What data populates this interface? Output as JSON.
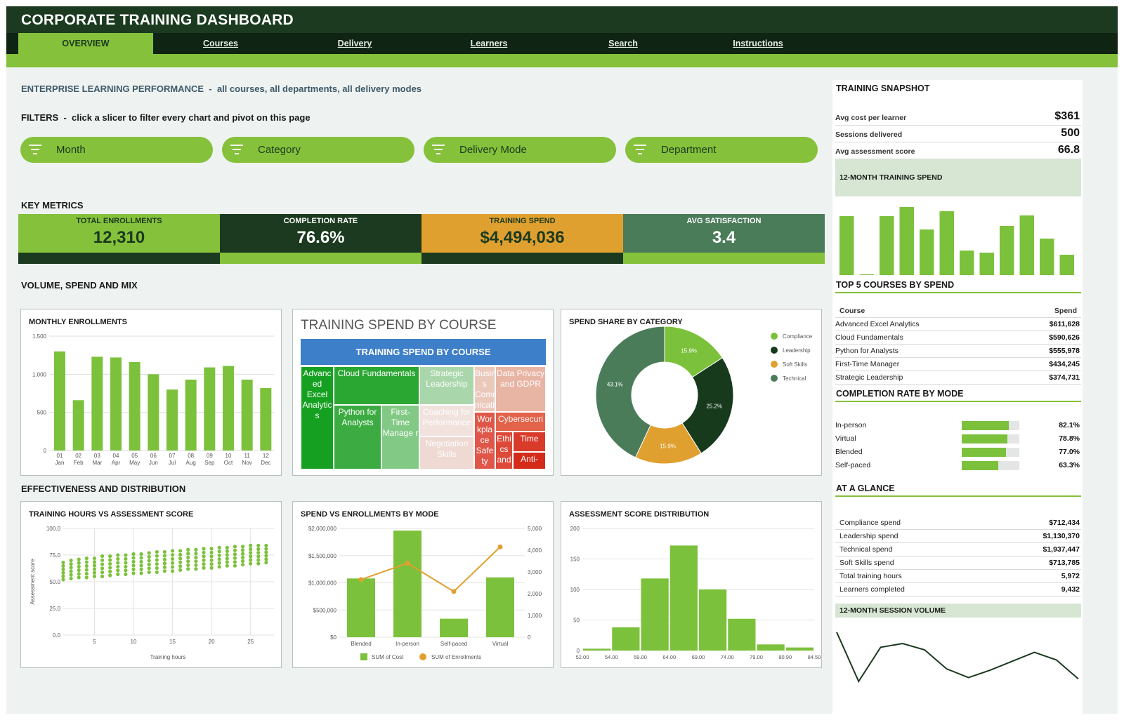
{
  "title": "CORPORATE TRAINING DASHBOARD",
  "nav": {
    "tabs": [
      {
        "label": "OVERVIEW",
        "active": true
      },
      {
        "label": "Courses",
        "active": false
      },
      {
        "label": "Delivery",
        "active": false
      },
      {
        "label": "Learners",
        "active": false
      },
      {
        "label": "Search",
        "active": false
      },
      {
        "label": "Instructions",
        "active": false
      }
    ]
  },
  "subtitle": {
    "main": "ENTERPRISE LEARNING PERFORMANCE",
    "scope": "all courses, all departments, all delivery modes"
  },
  "filters": {
    "heading": "FILTERS",
    "hint": "click a slicer to filter every chart and pivot on this page",
    "slicers": [
      "Month",
      "Category",
      "Delivery Mode",
      "Department"
    ],
    "icon": "filter-icon"
  },
  "key_metrics": {
    "heading": "KEY METRICS",
    "tiles": [
      {
        "label": "TOTAL ENROLLMENTS",
        "value": "12,310",
        "color": "#85c13b",
        "foot": "#1b3a1f",
        "text": "#1b3a1f"
      },
      {
        "label": "COMPLETION RATE",
        "value": "76.6%",
        "color": "#1b3a1f",
        "foot": "#85c13b",
        "text": "#ffffff"
      },
      {
        "label": "TRAINING SPEND",
        "value": "$4,494,036",
        "color": "#e0a030",
        "foot": "#1b3a1f",
        "text": "#1b3a1f"
      },
      {
        "label": "AVG SATISFACTION",
        "value": "3.4",
        "color": "#4a7c5a",
        "foot": "#85c13b",
        "text": "#ffffff"
      }
    ]
  },
  "sections": {
    "volume": "VOLUME, SPEND AND MIX",
    "effectiveness": "EFFECTIVENESS AND DISTRIBUTION"
  },
  "colors": {
    "brand_dark": "#1b3a1f",
    "brand_green": "#85c13b",
    "bar_green": "#7cc13b",
    "orange": "#e0a030"
  },
  "treemap": {
    "title": "TRAINING SPEND BY COURSE",
    "header": "TRAINING SPEND BY COURSE",
    "cells": [
      {
        "label": "Advanced Excel Analytics",
        "display": "Advanc ed Excel Analytic s",
        "color": "#16a022",
        "text": "#ffffff"
      },
      {
        "label": "Cloud Fundamentals",
        "display": "Cloud Fundamentals",
        "color": "#2aa632",
        "text": "#ffffff"
      },
      {
        "label": "Python for Analysts",
        "display": "Python for Analysts",
        "color": "#3cac42",
        "text": "#ffffff"
      },
      {
        "label": "First-Time Manager",
        "display": "First- Time Manage r",
        "color": "#82c985",
        "text": "#ffffff"
      },
      {
        "label": "Strategic Leadership",
        "display": "Strategic Leadership",
        "color": "#a9d6aa",
        "text": "#ffffff"
      },
      {
        "label": "Coaching for Performance",
        "display": "Coaching for Performance",
        "color": "#f1e2de",
        "text": "#ffffff"
      },
      {
        "label": "Negotiation Skills",
        "display": "Negotiation Skills",
        "color": "#efd9d3",
        "text": "#ffffff"
      },
      {
        "label": "Business Communication",
        "display": "Busines s Commu nication",
        "color": "#ebc8bc",
        "text": "#ffffff"
      },
      {
        "label": "Data Privacy and GDPR",
        "display": "Data Privacy and GDPR",
        "color": "#e8b4a4",
        "text": "#ffffff"
      },
      {
        "label": "Cybersecurity",
        "display": "Cybersecuri",
        "color": "#e2624a",
        "text": "#ffffff"
      },
      {
        "label": "Workplace Safety",
        "display": "Wor kpla ce Safe ty",
        "color": "#e0574a",
        "text": "#ffffff"
      },
      {
        "label": "Ethics and",
        "display": "Ethi cs and",
        "color": "#dd4a3a",
        "text": "#ffffff"
      },
      {
        "label": "Time",
        "display": "Time",
        "color": "#d93a2a",
        "text": "#ffffff"
      },
      {
        "label": "Anti-",
        "display": "Anti-",
        "color": "#d32a1a",
        "text": "#ffffff"
      }
    ]
  },
  "chart_data": [
    {
      "id": "monthly_enrollments",
      "type": "bar",
      "title": "MONTHLY ENROLLMENTS",
      "categories": [
        "01 Jan",
        "02 Feb",
        "03 Mar",
        "04 Apr",
        "05 May",
        "06 Jun",
        "07 Jul",
        "08 Aug",
        "09 Sep",
        "10 Oct",
        "11 Nov",
        "12 Dec"
      ],
      "tick_top": [
        "01",
        "02",
        "03",
        "04",
        "05",
        "06",
        "07",
        "08",
        "09",
        "10",
        "11",
        "12"
      ],
      "tick_bottom": [
        "Jan",
        "Feb",
        "Mar",
        "Apr",
        "May",
        "Jun",
        "Jul",
        "Aug",
        "Sep",
        "Oct",
        "Nov",
        "Dec"
      ],
      "values": [
        1300,
        660,
        1230,
        1220,
        1160,
        1000,
        800,
        930,
        1090,
        1110,
        930,
        820
      ],
      "ylim": [
        0,
        1500
      ],
      "yticks": [
        "0",
        "500",
        "1,000",
        "1,500"
      ],
      "grid": true,
      "color": "#7cc13b"
    },
    {
      "id": "spend_share_by_category",
      "type": "pie",
      "donut": true,
      "title": "SPEND SHARE BY CATEGORY",
      "slices": [
        {
          "name": "Compliance",
          "value": 15.9,
          "label": "15.9%",
          "color": "#7cc13b"
        },
        {
          "name": "Leadership",
          "value": 25.2,
          "label": "25.2%",
          "color": "#163a1b"
        },
        {
          "name": "Soft Skills",
          "value": 15.9,
          "label": "15.9%",
          "color": "#e0a030"
        },
        {
          "name": "Technical",
          "value": 43.1,
          "label": "43.1%",
          "color": "#4a7c5a"
        }
      ],
      "legend": "right"
    },
    {
      "id": "training_hours_vs_score",
      "type": "scatter",
      "title": "TRAINING HOURS VS ASSESSMENT SCORE",
      "xlabel": "Training hours",
      "ylabel": "Assessment score",
      "xlim": [
        1,
        28
      ],
      "ylim": [
        0,
        100
      ],
      "xticks": [
        "5",
        "10",
        "15",
        "20",
        "25"
      ],
      "yticks": [
        "0.0",
        "25.0",
        "50.0",
        "75.0",
        "100.0"
      ],
      "x": [
        1,
        2,
        3,
        4,
        5,
        6,
        7,
        8,
        9,
        10,
        11,
        12,
        13,
        14,
        15,
        16,
        17,
        18,
        19,
        20,
        21,
        22,
        23,
        24,
        25,
        26,
        27
      ],
      "y_min": [
        52,
        53,
        54,
        54,
        55,
        55,
        56,
        57,
        57,
        58,
        58,
        59,
        59,
        60,
        60,
        61,
        62,
        62,
        63,
        63,
        64,
        65,
        65,
        66,
        67,
        67,
        68
      ],
      "y_max": [
        68,
        70,
        71,
        72,
        72,
        74,
        74,
        75,
        75,
        76,
        76,
        77,
        78,
        78,
        79,
        79,
        80,
        80,
        81,
        81,
        82,
        82,
        83,
        83,
        84,
        84,
        84
      ],
      "color": "#7cc13b"
    },
    {
      "id": "spend_vs_enrollments_by_mode",
      "type": "bar",
      "title": "SPEND VS ENROLLMENTS BY MODE",
      "categories": [
        "Blended",
        "In-person",
        "Self-paced",
        "Virtual"
      ],
      "series": [
        {
          "name": "SUM of Cost",
          "type": "bar",
          "values": [
            1080000,
            1960000,
            340000,
            1100000
          ],
          "color": "#7cc13b"
        },
        {
          "name": "SUM of Enrollments",
          "type": "line",
          "axis": "right",
          "values": [
            2650,
            3400,
            2100,
            4150
          ],
          "color": "#e0a030"
        }
      ],
      "ylim": [
        0,
        2000000
      ],
      "yticks": [
        "$0",
        "$500,000",
        "$1,000,000",
        "$1,500,000",
        "$2,000,000"
      ],
      "y2lim": [
        0,
        5000
      ],
      "y2ticks": [
        "0",
        "1,000",
        "2,000",
        "3,000",
        "4,000",
        "5,000"
      ],
      "legend": "bottom"
    },
    {
      "id": "assessment_score_distribution",
      "type": "bar",
      "title": "ASSESSMENT SCORE DISTRIBUTION",
      "xticks": [
        "52.00",
        "54.00",
        "59.00",
        "64.00",
        "69.00",
        "74.00",
        "79.00",
        "80.90",
        "84.50"
      ],
      "values": [
        3,
        38,
        118,
        172,
        100,
        52,
        10,
        5
      ],
      "ylim": [
        0,
        200
      ],
      "yticks": [
        "0",
        "50",
        "100",
        "150",
        "200"
      ],
      "color": "#7cc13b"
    },
    {
      "id": "twelve_month_training_spend",
      "type": "bar",
      "title": "12-MONTH TRAINING SPEND",
      "values": [
        420,
        5,
        420,
        485,
        325,
        455,
        175,
        160,
        350,
        425,
        260,
        145
      ],
      "ylim": [
        0,
        500
      ],
      "color": "#7cc13b"
    },
    {
      "id": "twelve_month_session_volume",
      "type": "line",
      "title": "12-MONTH SESSION VOLUME",
      "values": [
        44,
        5,
        32,
        35,
        30,
        15,
        8,
        14,
        21,
        28,
        22,
        7
      ],
      "ylim": [
        0,
        50
      ],
      "color": "#1b3a1f"
    }
  ],
  "sidebar": {
    "snapshot_title": "TRAINING SNAPSHOT",
    "snapshot": [
      {
        "label": "Avg cost per learner",
        "value": "$361"
      },
      {
        "label": "Sessions delivered",
        "value": "500"
      },
      {
        "label": "Avg assessment score",
        "value": "66.8"
      }
    ],
    "spend_band": "12-MONTH TRAINING SPEND",
    "top5_title": "TOP 5 COURSES BY SPEND",
    "top5_headers": {
      "course": "Course",
      "spend": "Spend"
    },
    "top5": [
      {
        "course": "Advanced Excel Analytics",
        "spend": "$611,628"
      },
      {
        "course": "Cloud Fundamentals",
        "spend": "$590,626"
      },
      {
        "course": "Python for Analysts",
        "spend": "$555,978"
      },
      {
        "course": "First-Time Manager",
        "spend": "$434,245"
      },
      {
        "course": "Strategic Leadership",
        "spend": "$374,731"
      }
    ],
    "completion_title": "COMPLETION RATE BY MODE",
    "completion": [
      {
        "mode": "In-person",
        "rate": 0.821,
        "label": "82.1%"
      },
      {
        "mode": "Virtual",
        "rate": 0.788,
        "label": "78.8%"
      },
      {
        "mode": "Blended",
        "rate": 0.77,
        "label": "77.0%"
      },
      {
        "mode": "Self-paced",
        "rate": 0.633,
        "label": "63.3%"
      }
    ],
    "glance_title": "AT A GLANCE",
    "glance": [
      {
        "label": "Compliance spend",
        "value": "$712,434"
      },
      {
        "label": "Leadership spend",
        "value": "$1,130,370"
      },
      {
        "label": "Technical spend",
        "value": "$1,937,447"
      },
      {
        "label": "Soft Skills spend",
        "value": "$713,785"
      },
      {
        "label": "Total training hours",
        "value": "5,972"
      },
      {
        "label": "Learners completed",
        "value": "9,432"
      }
    ],
    "session_band": "12-MONTH SESSION VOLUME"
  }
}
